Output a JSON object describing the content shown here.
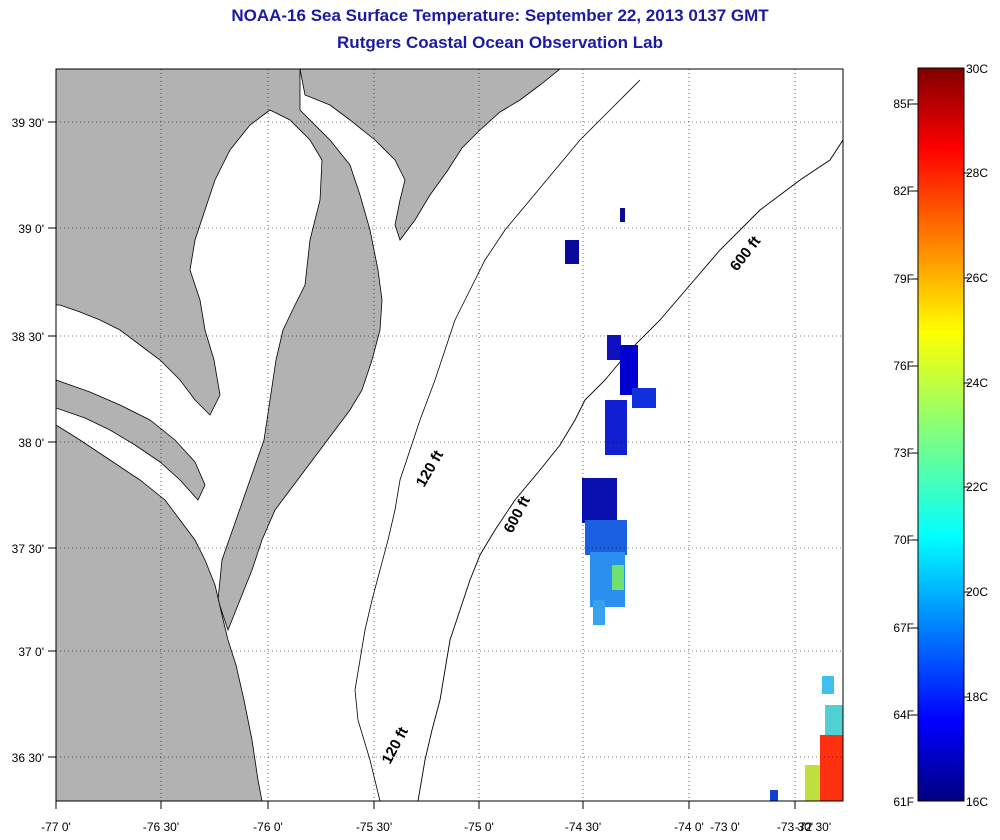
{
  "title_line1": "NOAA-16 Sea Surface Temperature:  September 22, 2013 0137 GMT",
  "title_line2": "Rutgers Coastal Ocean Observation Lab",
  "map": {
    "lat_labels": [
      "39 30'",
      "39 0'",
      "38 30'",
      "38 0'",
      "37 30'",
      "37 0'",
      "36 30'"
    ],
    "lon_labels": [
      "-77 0'",
      "-76 30'",
      "-76 0'",
      "-75 30'",
      "-75 0'",
      "-74 30'",
      "-74 0'",
      "-73 30'",
      "-73 0'",
      "-72 30'"
    ],
    "contour_labels": [
      "600 ft",
      "120 ft",
      "600 ft",
      "120 ft"
    ],
    "land_color": "#b2b2b2"
  },
  "colorbar": {
    "celsius_labels": [
      "30C",
      "28C",
      "26C",
      "24C",
      "22C",
      "20C",
      "18C",
      "16C"
    ],
    "fahrenheit_labels": [
      "85F",
      "82F",
      "79F",
      "76F",
      "73F",
      "70F",
      "67F",
      "64F",
      "61F"
    ],
    "min_c": 16,
    "max_c": 30,
    "colormap": "jet"
  }
}
